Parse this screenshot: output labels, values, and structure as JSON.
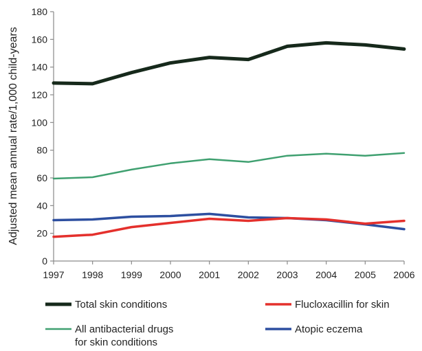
{
  "chart_data": {
    "type": "line",
    "title": "",
    "xlabel": "",
    "ylabel": "Adjusted mean annual rate/1,000 child-years",
    "x": [
      1997,
      1998,
      1999,
      2000,
      2001,
      2002,
      2003,
      2004,
      2005,
      2006
    ],
    "ylim": [
      0,
      180
    ],
    "yticks": [
      0,
      20,
      40,
      60,
      80,
      100,
      120,
      140,
      160,
      180
    ],
    "grid": false,
    "legend_position": "bottom",
    "series": [
      {
        "name": "Total skin conditions",
        "color": "#16291b",
        "line_style": "thick",
        "values": [
          128.5,
          128,
          136,
          143,
          147,
          145.5,
          155,
          157.5,
          156,
          153
        ]
      },
      {
        "name": "Flucloxacillin for skin",
        "color": "#e4302c",
        "line_style": "medium",
        "values": [
          17.5,
          19,
          24.5,
          27.5,
          30.5,
          29,
          31,
          30,
          27,
          29
        ]
      },
      {
        "name": "All antibacterial drugs for skin conditions",
        "name_lines": [
          "All antibacterial drugs",
          "for skin conditions"
        ],
        "color": "#3fa070",
        "line_style": "thin",
        "values": [
          59.5,
          60.5,
          66,
          70.5,
          73.5,
          71.5,
          76,
          77.5,
          76,
          78
        ]
      },
      {
        "name": "Atopic eczema",
        "color": "#2d4fa0",
        "line_style": "medium",
        "values": [
          29.5,
          30,
          32,
          32.5,
          34,
          31.5,
          31,
          29.5,
          26.5,
          23
        ]
      }
    ]
  }
}
